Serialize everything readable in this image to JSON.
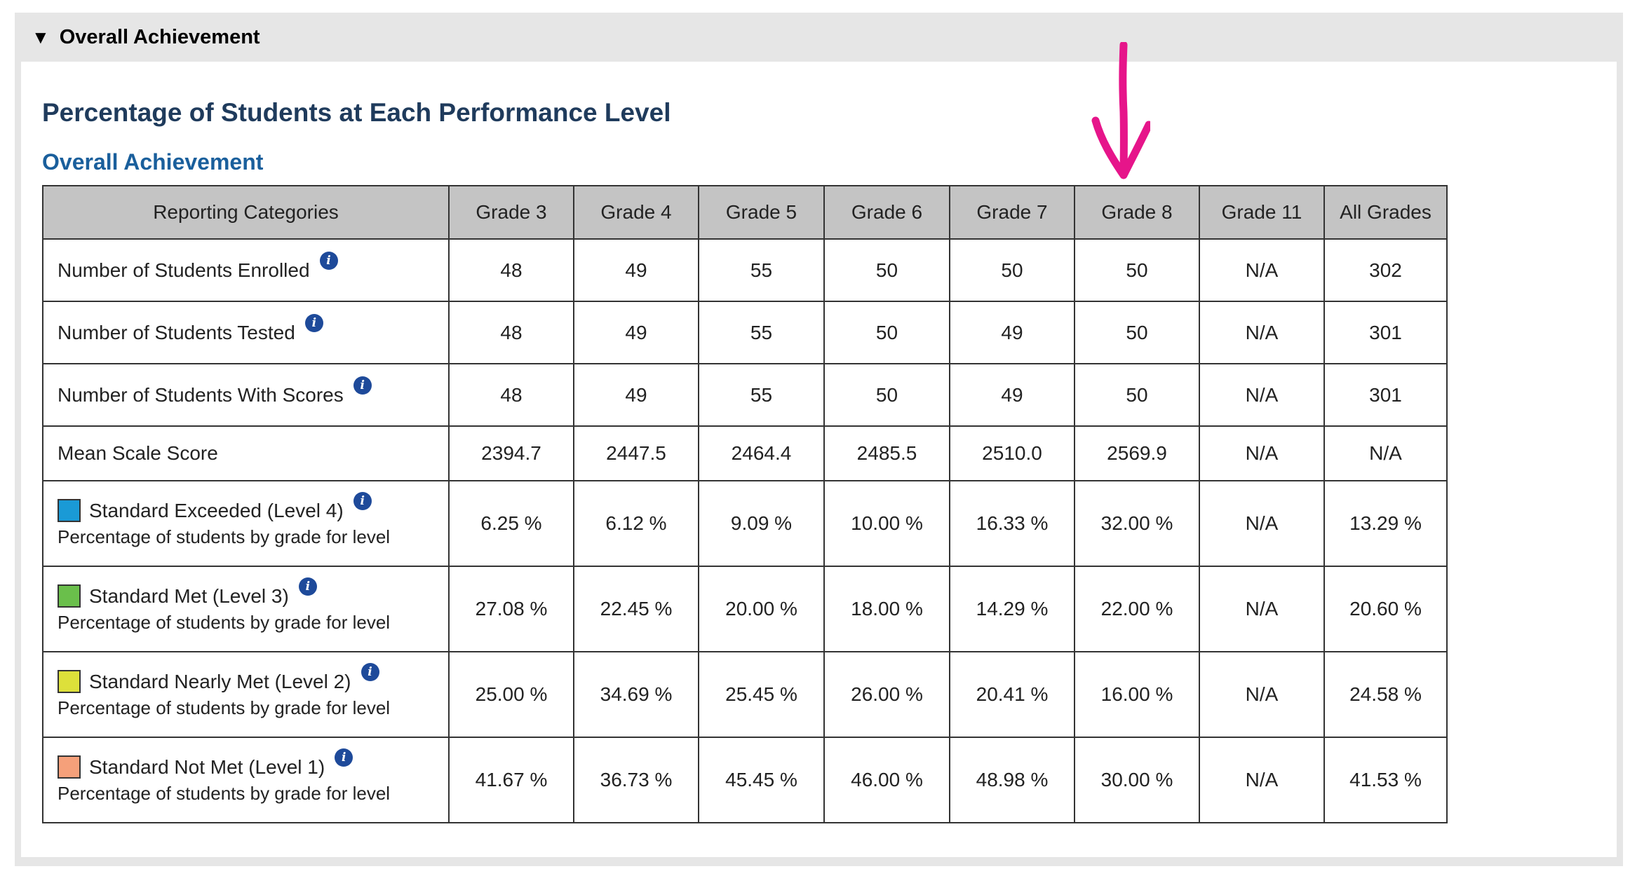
{
  "summary": {
    "triangle": "▼",
    "label": "Overall Achievement"
  },
  "main_title": "Percentage of Students at Each Performance Level",
  "sub_title": "Overall Achievement",
  "table": {
    "headers": [
      "Reporting Categories",
      "Grade 3",
      "Grade 4",
      "Grade 5",
      "Grade 6",
      "Grade 7",
      "Grade 8",
      "Grade 11",
      "All Grades"
    ],
    "rows": {
      "enrolled": {
        "label": "Number of Students Enrolled",
        "values": [
          "48",
          "49",
          "55",
          "50",
          "50",
          "50",
          "N/A",
          "302"
        ]
      },
      "tested": {
        "label": "Number of Students Tested",
        "values": [
          "48",
          "49",
          "55",
          "50",
          "49",
          "50",
          "N/A",
          "301"
        ]
      },
      "with_scores": {
        "label": "Number of Students With Scores",
        "values": [
          "48",
          "49",
          "55",
          "50",
          "49",
          "50",
          "N/A",
          "301"
        ]
      },
      "mean": {
        "label": "Mean Scale Score",
        "values": [
          "2394.7",
          "2447.5",
          "2464.4",
          "2485.5",
          "2510.0",
          "2569.9",
          "N/A",
          "N/A"
        ]
      },
      "level4": {
        "label": "Standard Exceeded (Level 4)",
        "sublabel": "Percentage of students by grade for level",
        "color": "#1a9ad6",
        "values": [
          "6.25 %",
          "6.12 %",
          "9.09 %",
          "10.00 %",
          "16.33 %",
          "32.00 %",
          "N/A",
          "13.29 %"
        ]
      },
      "level3": {
        "label": "Standard Met (Level 3)",
        "sublabel": "Percentage of students by grade for level",
        "color": "#6abf4b",
        "values": [
          "27.08 %",
          "22.45 %",
          "20.00 %",
          "18.00 %",
          "14.29 %",
          "22.00 %",
          "N/A",
          "20.60 %"
        ]
      },
      "level2": {
        "label": "Standard Nearly Met (Level 2)",
        "sublabel": "Percentage of students by grade for level",
        "color": "#dde03a",
        "values": [
          "25.00 %",
          "34.69 %",
          "25.45 %",
          "26.00 %",
          "20.41 %",
          "16.00 %",
          "N/A",
          "24.58 %"
        ]
      },
      "level1": {
        "label": "Standard Not Met (Level 1)",
        "sublabel": "Percentage of students by grade for level",
        "color": "#f5a07a",
        "values": [
          "41.67 %",
          "36.73 %",
          "45.45 %",
          "46.00 %",
          "48.98 %",
          "30.00 %",
          "N/A",
          "41.53 %"
        ]
      }
    }
  },
  "info_icon": "i",
  "annotation_color": "#e6158a"
}
